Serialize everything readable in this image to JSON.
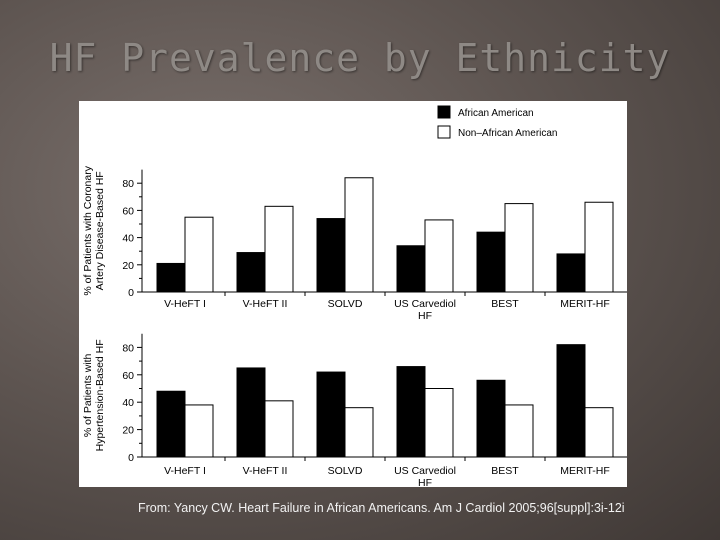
{
  "slide": {
    "title": "HF Prevalence by Ethnicity",
    "citation": "From: Yancy CW. Heart Failure in African Americans. Am J Cardiol 2005;96[suppl]:3i-12i"
  },
  "colors": {
    "african_american": "#000000",
    "non_african_american": "#ffffff",
    "bar_stroke": "#000000"
  },
  "legend": {
    "position": "top-right",
    "entries": [
      "African American",
      "Non–African American"
    ]
  },
  "chart_data": [
    {
      "type": "bar",
      "ylabel": [
        "% of Patients with Coronary",
        "Artery Disease-Based HF"
      ],
      "ylim": [
        0,
        90
      ],
      "yticks": [
        "0",
        "20",
        "40",
        "60",
        "80"
      ],
      "categories": [
        [
          "V-HeFT I"
        ],
        [
          "V-HeFT II"
        ],
        [
          "SOLVD"
        ],
        [
          "US Carvediol",
          "HF"
        ],
        [
          "BEST"
        ],
        [
          "MERIT-HF"
        ]
      ],
      "series": [
        {
          "name": "African American",
          "values": [
            21,
            29,
            54,
            34,
            44,
            28
          ]
        },
        {
          "name": "Non–African American",
          "values": [
            55,
            63,
            84,
            53,
            65,
            66
          ]
        }
      ]
    },
    {
      "type": "bar",
      "ylabel": [
        "% of Patients with",
        "Hypertension-Based HF"
      ],
      "ylim": [
        0,
        90
      ],
      "yticks": [
        "0",
        "20",
        "40",
        "60",
        "80"
      ],
      "categories": [
        [
          "V-HeFT I"
        ],
        [
          "V-HeFT II"
        ],
        [
          "SOLVD"
        ],
        [
          "US Carvediol",
          "HF"
        ],
        [
          "BEST"
        ],
        [
          "MERIT-HF"
        ]
      ],
      "series": [
        {
          "name": "African American",
          "values": [
            48,
            65,
            62,
            66,
            56,
            82
          ]
        },
        {
          "name": "Non–African American",
          "values": [
            38,
            41,
            36,
            50,
            38,
            36
          ]
        }
      ]
    }
  ]
}
